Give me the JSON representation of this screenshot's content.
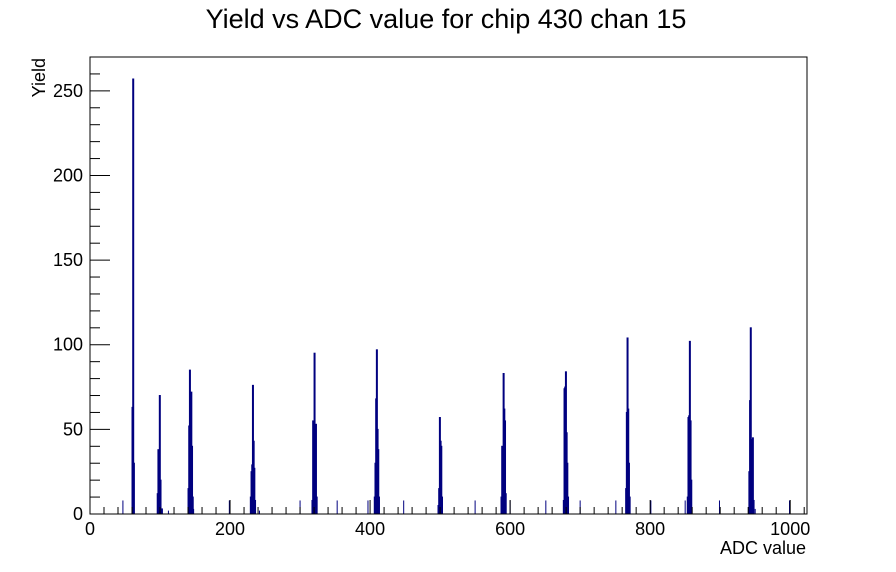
{
  "chart_data": {
    "type": "bar",
    "title": "Yield vs ADC value for chip 430 chan 15",
    "xlabel": "ADC value",
    "ylabel": "Yield",
    "xlim": [
      0,
      1024
    ],
    "ylim": [
      0,
      270
    ],
    "x_ticks": [
      0,
      200,
      400,
      600,
      800,
      1000
    ],
    "y_ticks": [
      0,
      50,
      100,
      150,
      200,
      250
    ],
    "grid": false,
    "legend": "none",
    "colors": {
      "histogram": "#00007f",
      "axes": "#000000"
    },
    "bins": [
      {
        "x": 60,
        "y": 63
      },
      {
        "x": 61,
        "y": 257
      },
      {
        "x": 62,
        "y": 30
      },
      {
        "x": 96,
        "y": 12
      },
      {
        "x": 97,
        "y": 38
      },
      {
        "x": 98,
        "y": 25
      },
      {
        "x": 99,
        "y": 70
      },
      {
        "x": 100,
        "y": 20
      },
      {
        "x": 102,
        "y": 3
      },
      {
        "x": 140,
        "y": 15
      },
      {
        "x": 141,
        "y": 52
      },
      {
        "x": 142,
        "y": 85
      },
      {
        "x": 143,
        "y": 38
      },
      {
        "x": 144,
        "y": 72
      },
      {
        "x": 145,
        "y": 40
      },
      {
        "x": 146,
        "y": 10
      },
      {
        "x": 229,
        "y": 10
      },
      {
        "x": 230,
        "y": 25
      },
      {
        "x": 231,
        "y": 29
      },
      {
        "x": 232,
        "y": 76
      },
      {
        "x": 233,
        "y": 43
      },
      {
        "x": 234,
        "y": 27
      },
      {
        "x": 235,
        "y": 8
      },
      {
        "x": 317,
        "y": 8
      },
      {
        "x": 318,
        "y": 55
      },
      {
        "x": 319,
        "y": 53
      },
      {
        "x": 320,
        "y": 95
      },
      {
        "x": 321,
        "y": 37
      },
      {
        "x": 322,
        "y": 53
      },
      {
        "x": 323,
        "y": 10
      },
      {
        "x": 406,
        "y": 10
      },
      {
        "x": 407,
        "y": 30
      },
      {
        "x": 408,
        "y": 68
      },
      {
        "x": 409,
        "y": 97
      },
      {
        "x": 410,
        "y": 50
      },
      {
        "x": 411,
        "y": 38
      },
      {
        "x": 412,
        "y": 10
      },
      {
        "x": 497,
        "y": 5
      },
      {
        "x": 498,
        "y": 15
      },
      {
        "x": 499,
        "y": 57
      },
      {
        "x": 500,
        "y": 43
      },
      {
        "x": 501,
        "y": 40
      },
      {
        "x": 502,
        "y": 10
      },
      {
        "x": 587,
        "y": 10
      },
      {
        "x": 588,
        "y": 40
      },
      {
        "x": 589,
        "y": 35
      },
      {
        "x": 590,
        "y": 83
      },
      {
        "x": 591,
        "y": 62
      },
      {
        "x": 592,
        "y": 55
      },
      {
        "x": 593,
        "y": 12
      },
      {
        "x": 676,
        "y": 8
      },
      {
        "x": 677,
        "y": 74
      },
      {
        "x": 678,
        "y": 75
      },
      {
        "x": 679,
        "y": 84
      },
      {
        "x": 680,
        "y": 48
      },
      {
        "x": 681,
        "y": 30
      },
      {
        "x": 682,
        "y": 10
      },
      {
        "x": 765,
        "y": 15
      },
      {
        "x": 766,
        "y": 60
      },
      {
        "x": 767,
        "y": 104
      },
      {
        "x": 768,
        "y": 62
      },
      {
        "x": 769,
        "y": 30
      },
      {
        "x": 770,
        "y": 10
      },
      {
        "x": 853,
        "y": 10
      },
      {
        "x": 854,
        "y": 57
      },
      {
        "x": 855,
        "y": 58
      },
      {
        "x": 856,
        "y": 102
      },
      {
        "x": 857,
        "y": 55
      },
      {
        "x": 858,
        "y": 20
      },
      {
        "x": 941,
        "y": 25
      },
      {
        "x": 942,
        "y": 67
      },
      {
        "x": 943,
        "y": 110
      },
      {
        "x": 944,
        "y": 22
      },
      {
        "x": 945,
        "y": 44
      },
      {
        "x": 946,
        "y": 45
      },
      {
        "x": 947,
        "y": 8
      }
    ],
    "isolated_counts": [
      {
        "x": 47,
        "y": 8
      },
      {
        "x": 112,
        "y": 2
      },
      {
        "x": 148,
        "y": 3
      },
      {
        "x": 199,
        "y": 8
      },
      {
        "x": 242,
        "y": 2
      },
      {
        "x": 300,
        "y": 8
      },
      {
        "x": 353,
        "y": 8
      },
      {
        "x": 397,
        "y": 8
      },
      {
        "x": 448,
        "y": 8
      },
      {
        "x": 499,
        "y": 3
      },
      {
        "x": 550,
        "y": 8
      },
      {
        "x": 600,
        "y": 8
      },
      {
        "x": 651,
        "y": 8
      },
      {
        "x": 700,
        "y": 8
      },
      {
        "x": 751,
        "y": 8
      },
      {
        "x": 801,
        "y": 8
      },
      {
        "x": 850,
        "y": 8
      },
      {
        "x": 899,
        "y": 8
      },
      {
        "x": 950,
        "y": 3
      },
      {
        "x": 999,
        "y": 8
      }
    ]
  }
}
